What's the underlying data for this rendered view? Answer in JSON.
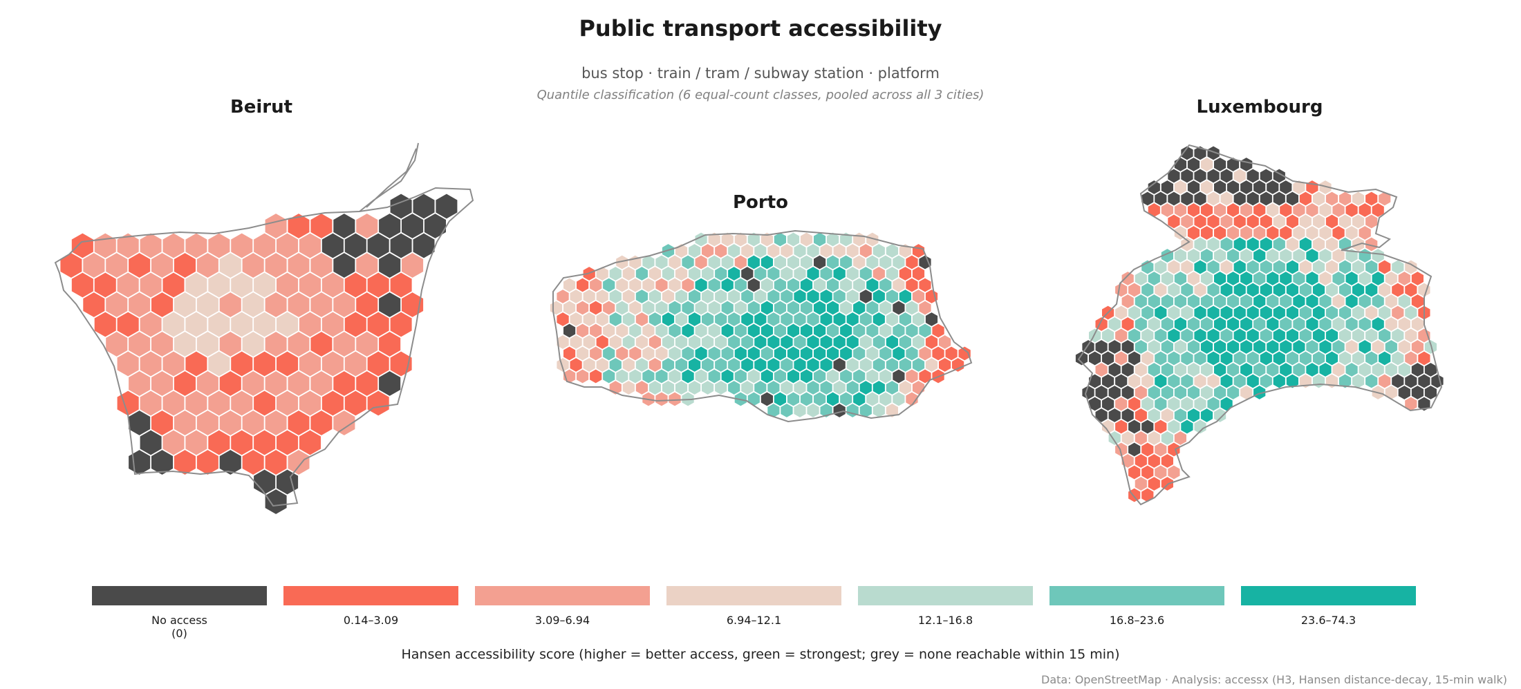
{
  "title": "Public transport accessibility",
  "subtitle": "bus stop · train / tram / subway station · platform",
  "note": "Quantile classification (6 equal-count classes, pooled across all 3 cities)",
  "cities": [
    {
      "name": "Beirut"
    },
    {
      "name": "Porto"
    },
    {
      "name": "Luxembourg"
    }
  ],
  "legend": {
    "classes": [
      {
        "label": "No access",
        "sublabel": "(0)",
        "color": "#4a4a4a"
      },
      {
        "label": "0.14–3.09",
        "sublabel": "",
        "color": "#f96a55"
      },
      {
        "label": "3.09–6.94",
        "sublabel": "",
        "color": "#f3a091"
      },
      {
        "label": "6.94–12.1",
        "sublabel": "",
        "color": "#ebd2c5"
      },
      {
        "label": "12.1–16.8",
        "sublabel": "",
        "color": "#b9dbcf"
      },
      {
        "label": "16.8–23.6",
        "sublabel": "",
        "color": "#6ec7ba"
      },
      {
        "label": "23.6–74.3",
        "sublabel": "",
        "color": "#17b3a3"
      }
    ],
    "caption": "Hansen accessibility score  (higher = better access, green = strongest; grey = none reachable within 15 min)"
  },
  "credit": "Data: OpenStreetMap  ·  Analysis: accessx (H3, Hansen distance-decay, 15-min walk)"
}
